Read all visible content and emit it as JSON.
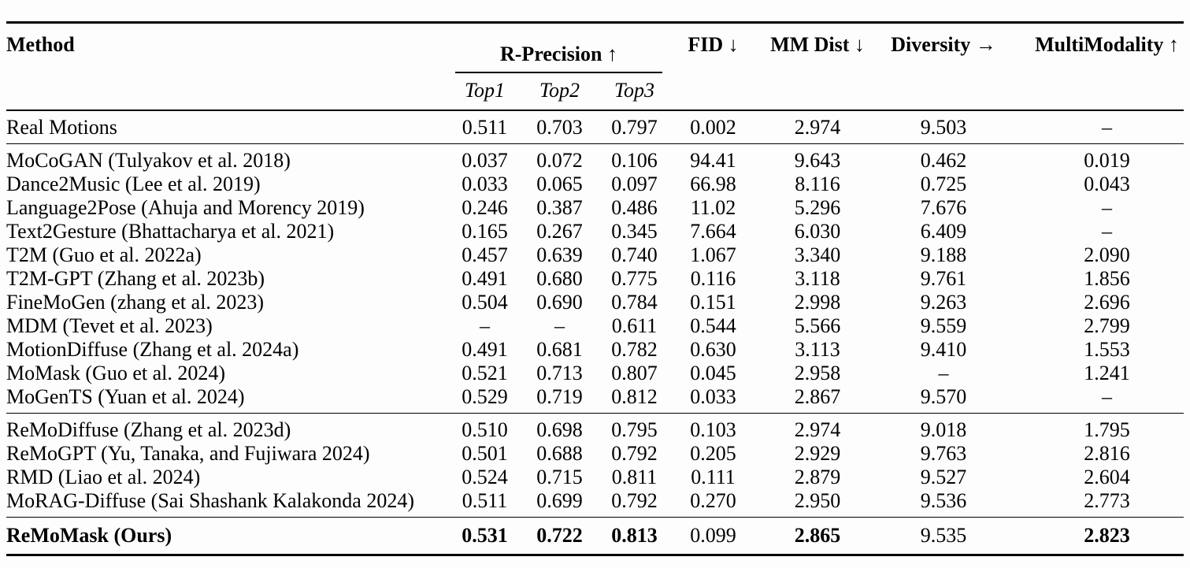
{
  "table": {
    "header": {
      "method": "Method",
      "r_precision": {
        "label": "R-Precision",
        "arrow": "↑"
      },
      "subcols": [
        "Top1",
        "Top2",
        "Top3"
      ],
      "cols": [
        {
          "label": "FID",
          "arrow": "↓"
        },
        {
          "label": "MM Dist",
          "arrow": "↓"
        },
        {
          "label": "Diversity",
          "arrow": "→"
        },
        {
          "label": "MultiModality",
          "arrow": "↑"
        }
      ]
    },
    "groups": [
      {
        "name": "real-motions",
        "rows": [
          {
            "method": "Real Motions",
            "values": [
              "0.511",
              "0.703",
              "0.797",
              "0.002",
              "2.974",
              "9.503",
              "–"
            ],
            "bold": []
          }
        ]
      },
      {
        "name": "baseline-methods",
        "rows": [
          {
            "method": "MoCoGAN (Tulyakov et al. 2018)",
            "values": [
              "0.037",
              "0.072",
              "0.106",
              "94.41",
              "9.643",
              "0.462",
              "0.019"
            ],
            "bold": []
          },
          {
            "method": "Dance2Music (Lee et al. 2019)",
            "values": [
              "0.033",
              "0.065",
              "0.097",
              "66.98",
              "8.116",
              "0.725",
              "0.043"
            ],
            "bold": []
          },
          {
            "method": "Language2Pose (Ahuja and Morency 2019)",
            "values": [
              "0.246",
              "0.387",
              "0.486",
              "11.02",
              "5.296",
              "7.676",
              "–"
            ],
            "bold": []
          },
          {
            "method": "Text2Gesture (Bhattacharya et al. 2021)",
            "values": [
              "0.165",
              "0.267",
              "0.345",
              "7.664",
              "6.030",
              "6.409",
              "–"
            ],
            "bold": []
          },
          {
            "method": "T2M (Guo et al. 2022a)",
            "values": [
              "0.457",
              "0.639",
              "0.740",
              "1.067",
              "3.340",
              "9.188",
              "2.090"
            ],
            "bold": []
          },
          {
            "method": "T2M-GPT (Zhang et al. 2023b)",
            "values": [
              "0.491",
              "0.680",
              "0.775",
              "0.116",
              "3.118",
              "9.761",
              "1.856"
            ],
            "bold": []
          },
          {
            "method": "FineMoGen (zhang et al. 2023)",
            "values": [
              "0.504",
              "0.690",
              "0.784",
              "0.151",
              "2.998",
              "9.263",
              "2.696"
            ],
            "bold": []
          },
          {
            "method": "MDM (Tevet et al. 2023)",
            "values": [
              "–",
              "–",
              "0.611",
              "0.544",
              "5.566",
              "9.559",
              "2.799"
            ],
            "bold": []
          },
          {
            "method": "MotionDiffuse (Zhang et al. 2024a)",
            "values": [
              "0.491",
              "0.681",
              "0.782",
              "0.630",
              "3.113",
              "9.410",
              "1.553"
            ],
            "bold": []
          },
          {
            "method": "MoMask (Guo et al. 2024)",
            "values": [
              "0.521",
              "0.713",
              "0.807",
              "0.045",
              "2.958",
              "–",
              "1.241"
            ],
            "bold": []
          },
          {
            "method": "MoGenTS (Yuan et al. 2024)",
            "values": [
              "0.529",
              "0.719",
              "0.812",
              "0.033",
              "2.867",
              "9.570",
              "–"
            ],
            "bold": []
          }
        ]
      },
      {
        "name": "retrieval-augmented-methods",
        "rows": [
          {
            "method": "ReMoDiffuse (Zhang et al. 2023d)",
            "values": [
              "0.510",
              "0.698",
              "0.795",
              "0.103",
              "2.974",
              "9.018",
              "1.795"
            ],
            "bold": []
          },
          {
            "method": "ReMoGPT (Yu, Tanaka, and Fujiwara 2024)",
            "values": [
              "0.501",
              "0.688",
              "0.792",
              "0.205",
              "2.929",
              "9.763",
              "2.816"
            ],
            "bold": []
          },
          {
            "method": "RMD (Liao et al. 2024)",
            "values": [
              "0.524",
              "0.715",
              "0.811",
              "0.111",
              "2.879",
              "9.527",
              "2.604"
            ],
            "bold": []
          },
          {
            "method": "MoRAG-Diffuse (Sai Shashank Kalakonda 2024)",
            "values": [
              "0.511",
              "0.699",
              "0.792",
              "0.270",
              "2.950",
              "9.536",
              "2.773"
            ],
            "bold": []
          }
        ]
      },
      {
        "name": "ours",
        "rows": [
          {
            "method": "ReMoMask (Ours)",
            "method_bold": true,
            "values": [
              "0.531",
              "0.722",
              "0.813",
              "0.099",
              "2.865",
              "9.535",
              "2.823"
            ],
            "bold": [
              0,
              1,
              2,
              4,
              6
            ]
          }
        ]
      }
    ]
  }
}
